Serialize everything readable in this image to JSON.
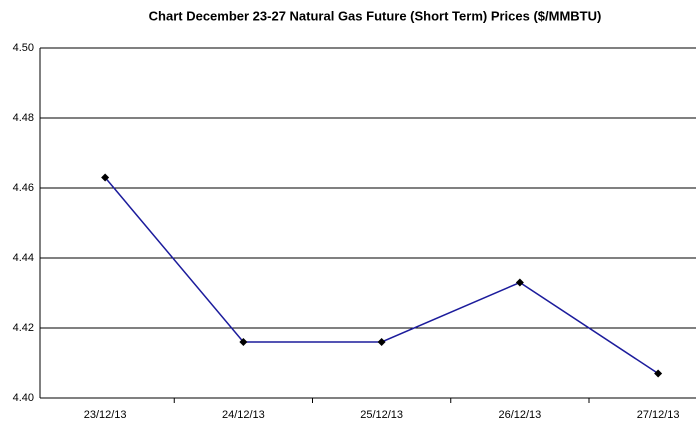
{
  "chart_data": {
    "type": "line",
    "title": "Chart  December 23-27 Natural Gas Future (Short Term)  Prices ($/MMBTU)",
    "categories": [
      "23/12/13",
      "24/12/13",
      "25/12/13",
      "26/12/13",
      "27/12/13"
    ],
    "series": [
      {
        "color": "#1c1c9c",
        "values": [
          4.463,
          4.416,
          4.416,
          4.433,
          4.407
        ]
      }
    ],
    "ylim": [
      4.4,
      4.5
    ],
    "yticks": [
      {
        "value": 4.4,
        "label": "4.40"
      },
      4.42,
      4.44,
      4.46,
      4.48,
      {
        "value": 4.5,
        "label": "4.50"
      }
    ],
    "grid": true
  }
}
